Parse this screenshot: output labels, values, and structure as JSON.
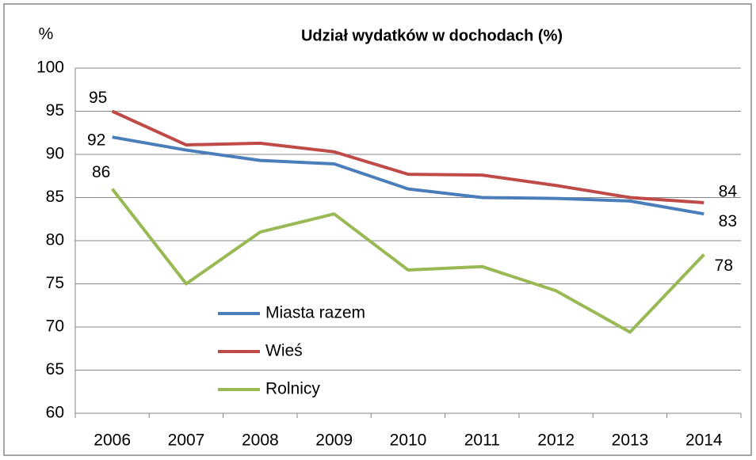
{
  "chart_data": {
    "type": "line",
    "title": "Udział wydatków w dochodach (%)",
    "y_label": "%",
    "categories": [
      "2006",
      "2007",
      "2008",
      "2009",
      "2010",
      "2011",
      "2012",
      "2013",
      "2014"
    ],
    "series": [
      {
        "name": "Miasta razem",
        "color": "#4a7ebb",
        "values": [
          92,
          90.5,
          89.3,
          88.9,
          86.0,
          85.0,
          84.9,
          84.6,
          83.1
        ],
        "value_labels": [
          "92",
          null,
          null,
          null,
          null,
          null,
          null,
          null,
          "83"
        ]
      },
      {
        "name": "Wieś",
        "color": "#be4b48",
        "values": [
          95,
          91.1,
          91.3,
          90.3,
          87.7,
          87.6,
          86.4,
          85.0,
          84.4
        ],
        "value_labels": [
          "95",
          null,
          null,
          null,
          null,
          null,
          null,
          null,
          "84"
        ]
      },
      {
        "name": "Rolnicy",
        "color": "#98b954",
        "values": [
          86,
          75.0,
          81.0,
          83.1,
          76.6,
          77.0,
          74.2,
          69.4,
          78.4
        ],
        "value_labels": [
          "86",
          null,
          null,
          null,
          null,
          null,
          null,
          null,
          "78"
        ]
      }
    ],
    "ylim": [
      60,
      100
    ],
    "yticks": [
      60,
      65,
      70,
      75,
      80,
      85,
      90,
      95,
      100
    ],
    "grid": true
  }
}
